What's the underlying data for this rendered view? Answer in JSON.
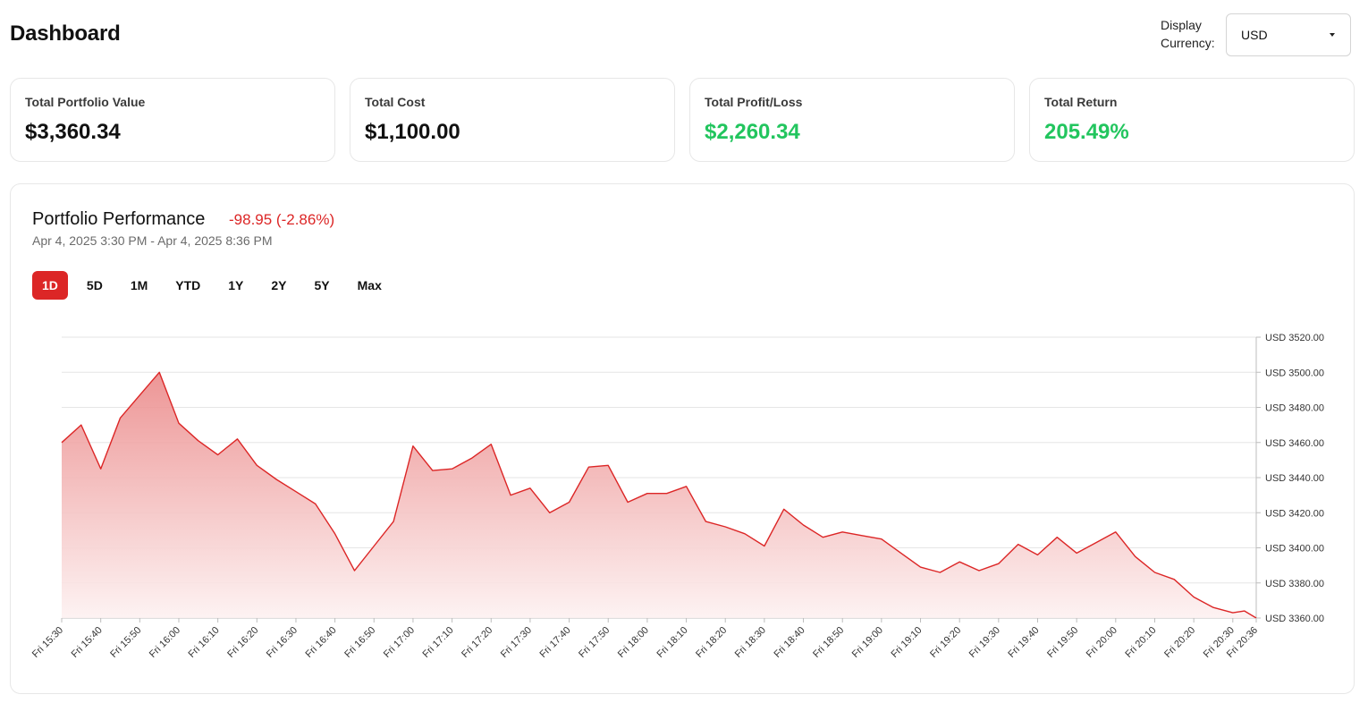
{
  "header": {
    "title": "Dashboard",
    "currency_label": "Display Currency:",
    "currency_value": "USD"
  },
  "stats": [
    {
      "label": "Total Portfolio Value",
      "value": "$3,360.34",
      "positive": false
    },
    {
      "label": "Total Cost",
      "value": "$1,100.00",
      "positive": false
    },
    {
      "label": "Total Profit/Loss",
      "value": "$2,260.34",
      "positive": true
    },
    {
      "label": "Total Return",
      "value": "205.49%",
      "positive": true
    }
  ],
  "performance": {
    "title": "Portfolio Performance",
    "change": "-98.95 (-2.86%)",
    "range": "Apr 4, 2025 3:30 PM - Apr 4, 2025 8:36 PM",
    "tabs": [
      "1D",
      "5D",
      "1M",
      "YTD",
      "1Y",
      "2Y",
      "5Y",
      "Max"
    ],
    "active_tab": "1D"
  },
  "colors": {
    "accent": "#dc2626",
    "positive": "#22c55e",
    "line": "#dc2626",
    "fill_top": "#eb8a8a",
    "fill_bottom": "#fdf1f1"
  },
  "chart_data": {
    "type": "area",
    "x_ticks": [
      "Fri 15:30",
      "Fri 15:40",
      "Fri 15:50",
      "Fri 16:00",
      "Fri 16:10",
      "Fri 16:20",
      "Fri 16:30",
      "Fri 16:40",
      "Fri 16:50",
      "Fri 17:00",
      "Fri 17:10",
      "Fri 17:20",
      "Fri 17:30",
      "Fri 17:40",
      "Fri 17:50",
      "Fri 18:00",
      "Fri 18:10",
      "Fri 18:20",
      "Fri 18:30",
      "Fri 18:40",
      "Fri 18:50",
      "Fri 19:00",
      "Fri 19:10",
      "Fri 19:20",
      "Fri 19:30",
      "Fri 19:40",
      "Fri 19:50",
      "Fri 20:00",
      "Fri 20:10",
      "Fri 20:20",
      "Fri 20:30",
      "Fri 20:36"
    ],
    "y_ticks": [
      "USD 3520.00",
      "USD 3500.00",
      "USD 3480.00",
      "USD 3460.00",
      "USD 3440.00",
      "USD 3420.00",
      "USD 3400.00",
      "USD 3380.00",
      "USD 3360.00"
    ],
    "ylim": [
      3360,
      3520
    ],
    "y_axis_position": "right",
    "grid": true,
    "x": [
      "15:30",
      "15:35",
      "15:40",
      "15:45",
      "15:50",
      "15:55",
      "16:00",
      "16:05",
      "16:10",
      "16:15",
      "16:20",
      "16:25",
      "16:30",
      "16:35",
      "16:40",
      "16:45",
      "16:50",
      "16:55",
      "17:00",
      "17:05",
      "17:10",
      "17:15",
      "17:20",
      "17:25",
      "17:30",
      "17:35",
      "17:40",
      "17:45",
      "17:50",
      "17:55",
      "18:00",
      "18:05",
      "18:10",
      "18:15",
      "18:20",
      "18:25",
      "18:30",
      "18:35",
      "18:40",
      "18:45",
      "18:50",
      "18:55",
      "19:00",
      "19:05",
      "19:10",
      "19:15",
      "19:20",
      "19:25",
      "19:30",
      "19:35",
      "19:40",
      "19:45",
      "19:50",
      "19:55",
      "20:00",
      "20:05",
      "20:10",
      "20:15",
      "20:20",
      "20:25",
      "20:30",
      "20:33",
      "20:36"
    ],
    "values": [
      3460,
      3470,
      3445,
      3474,
      3487,
      3500,
      3471,
      3461,
      3453,
      3462,
      3447,
      3439,
      3432,
      3425,
      3408,
      3387,
      3401,
      3415,
      3458,
      3444,
      3445,
      3451,
      3459,
      3430,
      3434,
      3420,
      3426,
      3446,
      3447,
      3426,
      3431,
      3431,
      3435,
      3415,
      3412,
      3408,
      3401,
      3422,
      3413,
      3406,
      3409,
      3407,
      3405,
      3397,
      3389,
      3386,
      3392,
      3387,
      3391,
      3402,
      3396,
      3406,
      3397,
      3403,
      3409,
      3395,
      3386,
      3382,
      3372,
      3366,
      3363,
      3364,
      3360
    ]
  }
}
